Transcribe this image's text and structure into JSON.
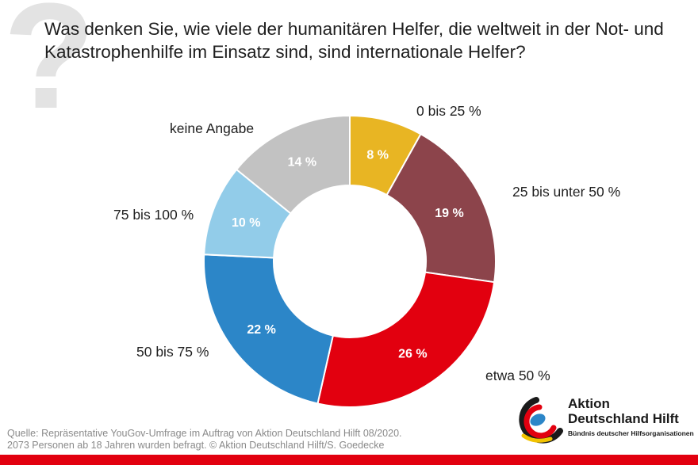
{
  "title": "Was denken Sie, wie viele der humanitären Helfer,  die weltweit in der Not- und Katastrophenhilfe im Einsatz sind, sind internationale Helfer?",
  "chart_data": {
    "type": "pie",
    "donut": true,
    "title": "Was denken Sie, wie viele der humanitären Helfer,  die weltweit in der Not- und Katastrophenhilfe im Einsatz sind, sind internationale Helfer?",
    "slices": [
      {
        "category": "0 bis 25 %",
        "value": 8,
        "label": "8 %",
        "color": "#e8b523"
      },
      {
        "category": "25 bis unter 50 %",
        "value": 19,
        "label": "19 %",
        "color": "#8c444b"
      },
      {
        "category": "etwa 50 %",
        "value": 26,
        "label": "26 %",
        "color": "#e2000f"
      },
      {
        "category": "50 bis 75 %",
        "value": 22,
        "label": "22 %",
        "color": "#2c86c8"
      },
      {
        "category": "75 bis 100 %",
        "value": 10,
        "label": "10 %",
        "color": "#92cce9"
      },
      {
        "category": "keine Angabe",
        "value": 14,
        "label": "14 %",
        "color": "#c2c2c2"
      }
    ]
  },
  "source": {
    "line1": "Quelle: Repräsentative YouGov-Umfrage im Auftrag von Aktion Deutschland Hilft 08/2020.",
    "line2": "2073 Personen ab 18 Jahren wurden befragt. © Aktion Deutschland Hilft/S. Goedecke"
  },
  "logo": {
    "name_line1": "Aktion",
    "name_line2": "Deutschland Hilft",
    "subtitle": "Bündnis deutscher Hilfsorganisationen"
  },
  "colors": {
    "accent": "#e2000f",
    "question_mark": "#e3e3e3",
    "source_text": "#8a8a8a"
  }
}
